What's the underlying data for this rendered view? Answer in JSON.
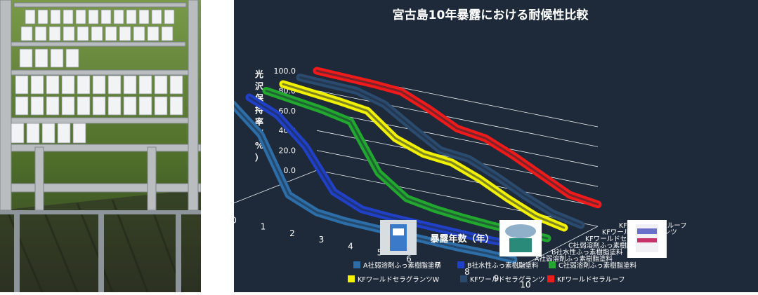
{
  "chart_data": {
    "type": "line",
    "title": "宮古島10年暴露における耐候性比較",
    "ylabel_chars": [
      "光",
      "沢",
      "保",
      "持",
      "率",
      "（",
      "%",
      "）"
    ],
    "xlabel": "暴露年数（年）",
    "y_ticks": [
      "0.0",
      "20.0",
      "40.0",
      "60.0",
      "80.0",
      "100.0"
    ],
    "x_ticks": [
      "0",
      "1",
      "2",
      "3",
      "4",
      "5",
      "6",
      "7",
      "8",
      "9",
      "10"
    ],
    "ylim": [
      0,
      100
    ],
    "grid": true,
    "series": [
      {
        "name": "A社弱溶剤ふっ素樹脂塗料",
        "color": "#2d6ea8",
        "values": [
          100,
          75,
          20,
          8,
          5,
          4,
          3,
          2,
          1,
          1,
          0
        ]
      },
      {
        "name": "B社水性ふっ素樹脂塗料",
        "color": "#2140c8",
        "values": [
          100,
          88,
          62,
          22,
          10,
          8,
          7,
          6,
          5,
          5,
          4
        ]
      },
      {
        "name": "C社弱溶剤ふっ素樹脂塗料",
        "color": "#22a82e",
        "values": [
          100,
          96,
          92,
          86,
          40,
          20,
          15,
          12,
          10,
          9,
          8
        ]
      },
      {
        "name": "KFワールドセラグランツW",
        "color": "#f2f200",
        "values": [
          100,
          97,
          94,
          90,
          68,
          58,
          55,
          44,
          30,
          18,
          12
        ]
      },
      {
        "name": "KFワールドセラグランツ",
        "color": "#2a4a6e",
        "values": [
          100,
          99,
          98,
          90,
          72,
          55,
          52,
          40,
          26,
          14,
          8
        ]
      },
      {
        "name": "KFワールドセラルーフ",
        "color": "#ef1a1a",
        "values": [
          100,
          99,
          98,
          96,
          84,
          70,
          66,
          54,
          40,
          26,
          22
        ]
      }
    ],
    "legend_position": "bottom"
  }
}
